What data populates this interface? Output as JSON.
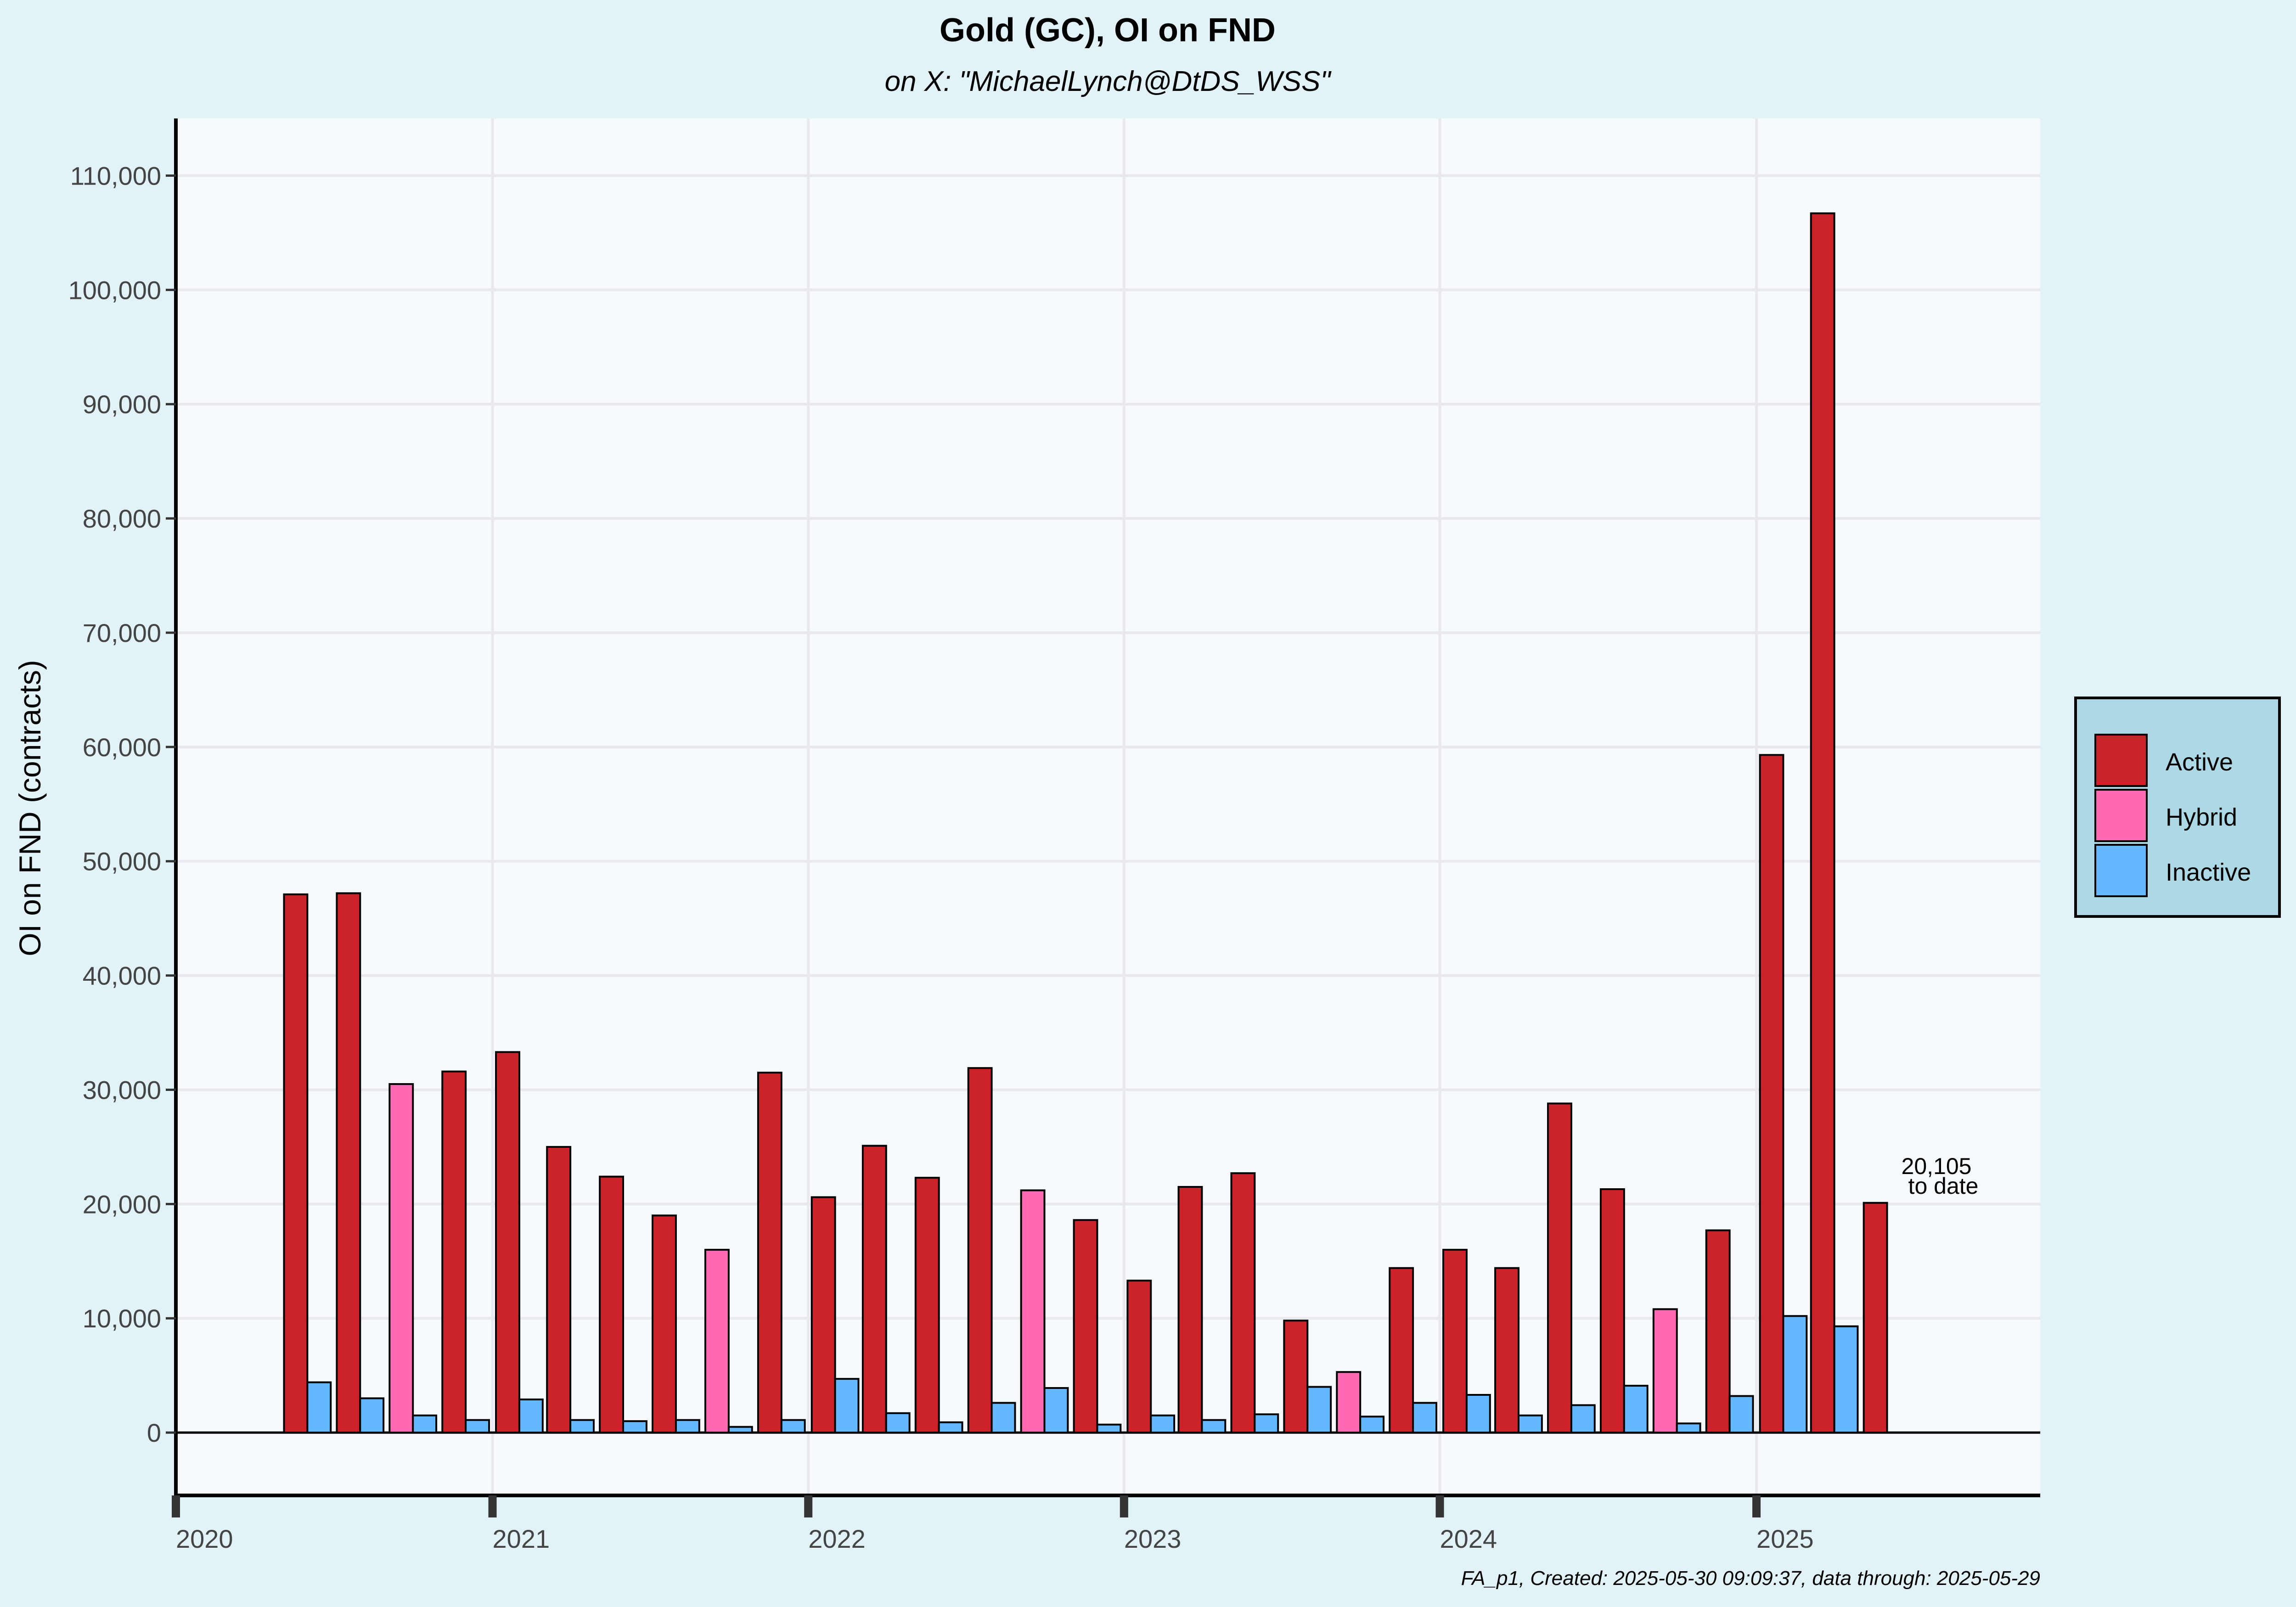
{
  "colors": {
    "page_bg": "#e2f3f8",
    "panel_bg": "#f6fafc",
    "grid": "#e8e8ee",
    "active": "#cc2229",
    "hybrid": "#ff69b4",
    "inactive": "#63b8ff",
    "legend_bg": "#add8e6"
  },
  "chart_data": {
    "type": "bar",
    "title": "Gold (GC), OI on FND",
    "subtitle": "on X:   \"MichaelLynch@DtDS_WSS\"",
    "ylabel": "OI on FND (contracts)",
    "xlabel": "",
    "x_type": "date",
    "xlim": [
      "2020-01-01",
      "2025-11-25"
    ],
    "ylim": [
      -5500,
      115000
    ],
    "x_ticks": [
      "2020",
      "2021",
      "2022",
      "2023",
      "2024",
      "2025"
    ],
    "y_ticks": [
      0,
      10000,
      20000,
      30000,
      40000,
      50000,
      60000,
      70000,
      80000,
      90000,
      100000,
      110000
    ],
    "y_tick_labels": [
      "0",
      "10,000",
      "20,000",
      "30,000",
      "40,000",
      "50,000",
      "60,000",
      "70,000",
      "80,000",
      "90,000",
      "100,000",
      "110,000"
    ],
    "grid": true,
    "legend_position": "right",
    "legend": [
      "Active",
      "Hybrid",
      "Inactive"
    ],
    "bars": [
      {
        "date": "2020-06-01",
        "active": 47100,
        "inactive": 4400
      },
      {
        "date": "2020-08-01",
        "active": 47200,
        "inactive": 3000
      },
      {
        "date": "2020-10-01",
        "hybrid": 30500,
        "inactive": 1500
      },
      {
        "date": "2020-12-01",
        "active": 31600,
        "inactive": 1100
      },
      {
        "date": "2021-02-01",
        "active": 33300,
        "inactive": 2900
      },
      {
        "date": "2021-04-01",
        "active": 25000,
        "inactive": 1100
      },
      {
        "date": "2021-06-01",
        "active": 22400,
        "inactive": 1000
      },
      {
        "date": "2021-08-01",
        "active": 19000,
        "inactive": 1100
      },
      {
        "date": "2021-10-01",
        "hybrid": 16000,
        "inactive": 500
      },
      {
        "date": "2021-12-01",
        "active": 31500,
        "inactive": 1100
      },
      {
        "date": "2022-02-01",
        "active": 20600,
        "inactive": 4700
      },
      {
        "date": "2022-04-01",
        "active": 25100,
        "inactive": 1700
      },
      {
        "date": "2022-06-01",
        "active": 22300,
        "inactive": 900
      },
      {
        "date": "2022-08-01",
        "active": 31900,
        "inactive": 2600
      },
      {
        "date": "2022-10-01",
        "hybrid": 21200,
        "inactive": 3900
      },
      {
        "date": "2022-12-01",
        "active": 18600,
        "inactive": 700
      },
      {
        "date": "2023-02-01",
        "active": 13300,
        "inactive": 1500
      },
      {
        "date": "2023-04-01",
        "active": 21500,
        "inactive": 1100
      },
      {
        "date": "2023-06-01",
        "active": 22700,
        "inactive": 1600
      },
      {
        "date": "2023-08-01",
        "active": 9800,
        "inactive": 4000
      },
      {
        "date": "2023-10-01",
        "hybrid": 5300,
        "inactive": 1400
      },
      {
        "date": "2023-12-01",
        "active": 14400,
        "inactive": 2600
      },
      {
        "date": "2024-02-01",
        "active": 16000,
        "inactive": 3300
      },
      {
        "date": "2024-04-01",
        "active": 14400,
        "inactive": 1500
      },
      {
        "date": "2024-06-01",
        "active": 28800,
        "inactive": 2400
      },
      {
        "date": "2024-08-01",
        "active": 21300,
        "inactive": 4100
      },
      {
        "date": "2024-10-01",
        "hybrid": 10800,
        "inactive": 800
      },
      {
        "date": "2024-12-01",
        "active": 17700,
        "inactive": 3200
      },
      {
        "date": "2025-02-01",
        "active": 59300,
        "inactive": 10200
      },
      {
        "date": "2025-04-01",
        "active": 106700,
        "inactive": 9300
      },
      {
        "date": "2025-06-01",
        "active": 20105
      }
    ],
    "annotation": {
      "line1": "20,105",
      "line2": "to date"
    },
    "caption": "FA_p1, Created: 2025-05-30 09:09:37, data through: 2025-05-29"
  }
}
